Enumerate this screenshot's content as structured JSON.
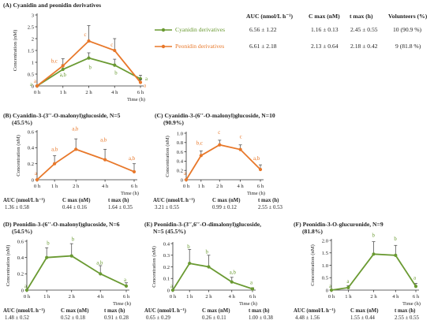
{
  "colors": {
    "cyanidin": "#6a9a32",
    "peonidin": "#e8782a",
    "axis": "#333333",
    "err": "#555555"
  },
  "panels": [
    {
      "id": "A",
      "title": "(A)  Cyanidin and peonidin derivatives",
      "subtitle": "",
      "axis": {
        "ylabel": "Concentration (nM)",
        "xlabel": "Time (h)",
        "ylim": [
          0,
          3
        ],
        "yticks": [
          "0",
          "0.5",
          "1",
          "1.5",
          "2",
          "2.5",
          "3"
        ],
        "xticks": [
          "0 h",
          "1 h",
          "2 h",
          "4 h",
          "6 h"
        ]
      },
      "chart_data": {
        "type": "line",
        "x": [
          "0 h",
          "1 h",
          "2 h",
          "4 h",
          "6 h"
        ],
        "ylim": [
          0,
          3
        ],
        "series": [
          {
            "name": "Cyanidin derivatives",
            "color": "#6a9a32",
            "values": [
              0,
              0.7,
              1.18,
              0.88,
              0.3
            ],
            "errors": [
              0,
              0.2,
              0.22,
              0.25,
              0.15
            ],
            "letters": [
              "a",
              "a,b",
              "b",
              "b",
              "a"
            ]
          },
          {
            "name": "Peonidin derivatives",
            "color": "#e8782a",
            "values": [
              0,
              0.85,
              1.9,
              1.5,
              0.15
            ],
            "errors": [
              0,
              0.3,
              0.65,
              0.5,
              0.12
            ],
            "letters": [
              "a",
              "b,c",
              "c",
              "c",
              "a"
            ]
          }
        ]
      }
    },
    {
      "id": "B",
      "title": "(B)  Cyanidin-3-(3′′-O-malonyl)glucoside, N=5",
      "subtitle": "(45.5%)",
      "axis": {
        "ylabel": "Concentration (nM)",
        "xlabel": "Time (h)",
        "ylim": [
          0,
          0.6
        ],
        "yticks": [
          "0",
          "0.2",
          "0.4",
          "0.6"
        ],
        "xticks": [
          "0 h",
          "1 h",
          "2 h",
          "4 h",
          "6 h"
        ]
      },
      "chart_data": {
        "type": "line",
        "x": [
          "0 h",
          "1 h",
          "2 h",
          "4 h",
          "6 h"
        ],
        "ylim": [
          0,
          0.6
        ],
        "series": [
          {
            "color": "#e8782a",
            "values": [
              0,
              0.2,
              0.38,
              0.25,
              0.1
            ],
            "errors": [
              0,
              0.1,
              0.13,
              0.13,
              0.1
            ],
            "letters": [
              "a",
              "a,b",
              "a,b",
              "a,b",
              "a,b"
            ]
          }
        ]
      },
      "summary": {
        "labels": [
          "AUC (nmol/L h⁻¹)",
          "C max (nM)",
          "t max (h)"
        ],
        "values": [
          "1.36 ± 0.58",
          "0.44 ± 0.16",
          "1.64 ± 0.35"
        ]
      }
    },
    {
      "id": "C",
      "title": "(C)  Cyanidin-3-(6′′-O-malonyl)glucoside, N=10",
      "subtitle": "(90.9%)",
      "axis": {
        "ylabel": "Concentration (nM)",
        "xlabel": "Time (h)",
        "ylim": [
          0,
          1
        ],
        "yticks": [
          "0",
          "0.2",
          "0.4",
          "0.6",
          "0.8",
          "1.0"
        ],
        "xticks": [
          "0 h",
          "1 h",
          "2 h",
          "4 h",
          "6 h"
        ]
      },
      "chart_data": {
        "type": "line",
        "x": [
          "0 h",
          "1 h",
          "2 h",
          "4 h",
          "6 h"
        ],
        "ylim": [
          0,
          1
        ],
        "series": [
          {
            "color": "#e8782a",
            "values": [
              0,
              0.52,
              0.75,
              0.65,
              0.22
            ],
            "errors": [
              0,
              0.1,
              0.1,
              0.1,
              0.1
            ],
            "letters": [
              "a",
              "b,c",
              "c",
              "c",
              "a,b"
            ]
          }
        ]
      },
      "summary": {
        "labels": [
          "AUC (nmol/L h⁻¹)",
          "C max (nM)",
          "t max (h)"
        ],
        "values": [
          "3.21 ± 0.55",
          "0.99 ± 0.12",
          "2.55 ± 0.53"
        ]
      }
    },
    {
      "id": "D",
      "title": "(D)  Peonidin-3-(6′′-O-malonyl)glucoside, N=6",
      "subtitle": "(54.5%)",
      "axis": {
        "ylabel": "Concentration (nM)",
        "xlabel": "Time (h)",
        "ylim": [
          0,
          0.6
        ],
        "yticks": [
          "0",
          "0.2",
          "0.4",
          "0.6"
        ],
        "xticks": [
          "0 h",
          "1 h",
          "2 h",
          "4 h",
          "6 h"
        ]
      },
      "chart_data": {
        "type": "line",
        "x": [
          "0 h",
          "1 h",
          "2 h",
          "4 h",
          "6 h"
        ],
        "ylim": [
          0,
          0.6
        ],
        "series": [
          {
            "color": "#6a9a32",
            "values": [
              0,
              0.4,
              0.42,
              0.2,
              0.05
            ],
            "errors": [
              0,
              0.12,
              0.15,
              0.1,
              0.04
            ],
            "letters": [
              "a",
              "b",
              "b",
              "a,b",
              "a"
            ]
          }
        ]
      },
      "summary": {
        "labels": [
          "AUC (nmol/L h⁻¹)",
          "C max (nM)",
          "t max (h)"
        ],
        "values": [
          "1.48 ± 0.52",
          "0.52 ± 0.18",
          "0.91 ± 0.28"
        ]
      }
    },
    {
      "id": "E",
      "title": "(E)  Peonidin-3-(3′′,6′′-O-dimalonyl)glucoside,",
      "subtitle": "N=5 (45.5%)",
      "axis": {
        "ylabel": "Concentration (nM)",
        "xlabel": "Time (h)",
        "ylim": [
          0,
          0.4
        ],
        "yticks": [
          "0",
          "0.1",
          "0.2",
          "0.3",
          "0.4"
        ],
        "xticks": [
          "0 h",
          "1 h",
          "2 h",
          "4 h",
          "6 h"
        ]
      },
      "chart_data": {
        "type": "line",
        "x": [
          "0 h",
          "1 h",
          "2 h",
          "4 h",
          "6 h"
        ],
        "ylim": [
          0,
          0.4
        ],
        "series": [
          {
            "color": "#6a9a32",
            "values": [
              0,
              0.23,
              0.2,
              0.07,
              0.01
            ],
            "errors": [
              0,
              0.12,
              0.1,
              0.04,
              0.01
            ],
            "letters": [
              "a",
              "b",
              "b",
              "a,b",
              "a"
            ]
          }
        ]
      },
      "summary": {
        "labels": [
          "AUC (nmol/L h⁻¹)",
          "C max (nM)",
          "t max (h)"
        ],
        "values": [
          "0.65 ± 0.29",
          "0.26 ± 0.11",
          "1.00 ± 0.38"
        ]
      }
    },
    {
      "id": "F",
      "title": "(F)  Peonidin-3-O-glucuronide, N=9",
      "subtitle": "(81.8%)",
      "axis": {
        "ylabel": "Concentration (nM)",
        "xlabel": "Time (h)",
        "ylim": [
          0,
          2
        ],
        "yticks": [
          "0",
          "0.5",
          "1.0",
          "1.5",
          "2.0"
        ],
        "xticks": [
          "0 h",
          "1 h",
          "2 h",
          "4 h",
          "6 h"
        ]
      },
      "chart_data": {
        "type": "line",
        "x": [
          "0 h",
          "1 h",
          "2 h",
          "4 h",
          "6 h"
        ],
        "ylim": [
          0,
          2
        ],
        "series": [
          {
            "color": "#6a9a32",
            "values": [
              0,
              0.1,
              1.45,
              1.4,
              0.15
            ],
            "errors": [
              0,
              0.08,
              0.5,
              0.4,
              0.12
            ],
            "letters": [
              "a",
              "a",
              "b",
              "b",
              "a"
            ]
          }
        ]
      },
      "summary": {
        "labels": [
          "AUC (nmol/L h⁻¹)",
          "C max (nM)",
          "t max (h)"
        ],
        "values": [
          "4.48 ± 1.56",
          "1.55 ± 0.44",
          "2.55 ± 0.55"
        ]
      }
    }
  ],
  "table_A": {
    "headers": [
      "",
      "AUC (nmol/L h⁻¹)",
      "C max (nM)",
      "t max (h)",
      "Volunteers (%)"
    ],
    "rows": [
      {
        "label": "Cyanidin derivatives",
        "cells": [
          "6.56 ± 1.22",
          "1.16 ± 0.13",
          "2.45 ± 0.55",
          "10 (90.9 %)"
        ]
      },
      {
        "label": "Peonidin derivatives",
        "cells": [
          "6.61 ± 2.18",
          "2.13 ± 0.64",
          "2.18 ± 0.42",
          "9 (81.8 %)"
        ]
      }
    ]
  }
}
